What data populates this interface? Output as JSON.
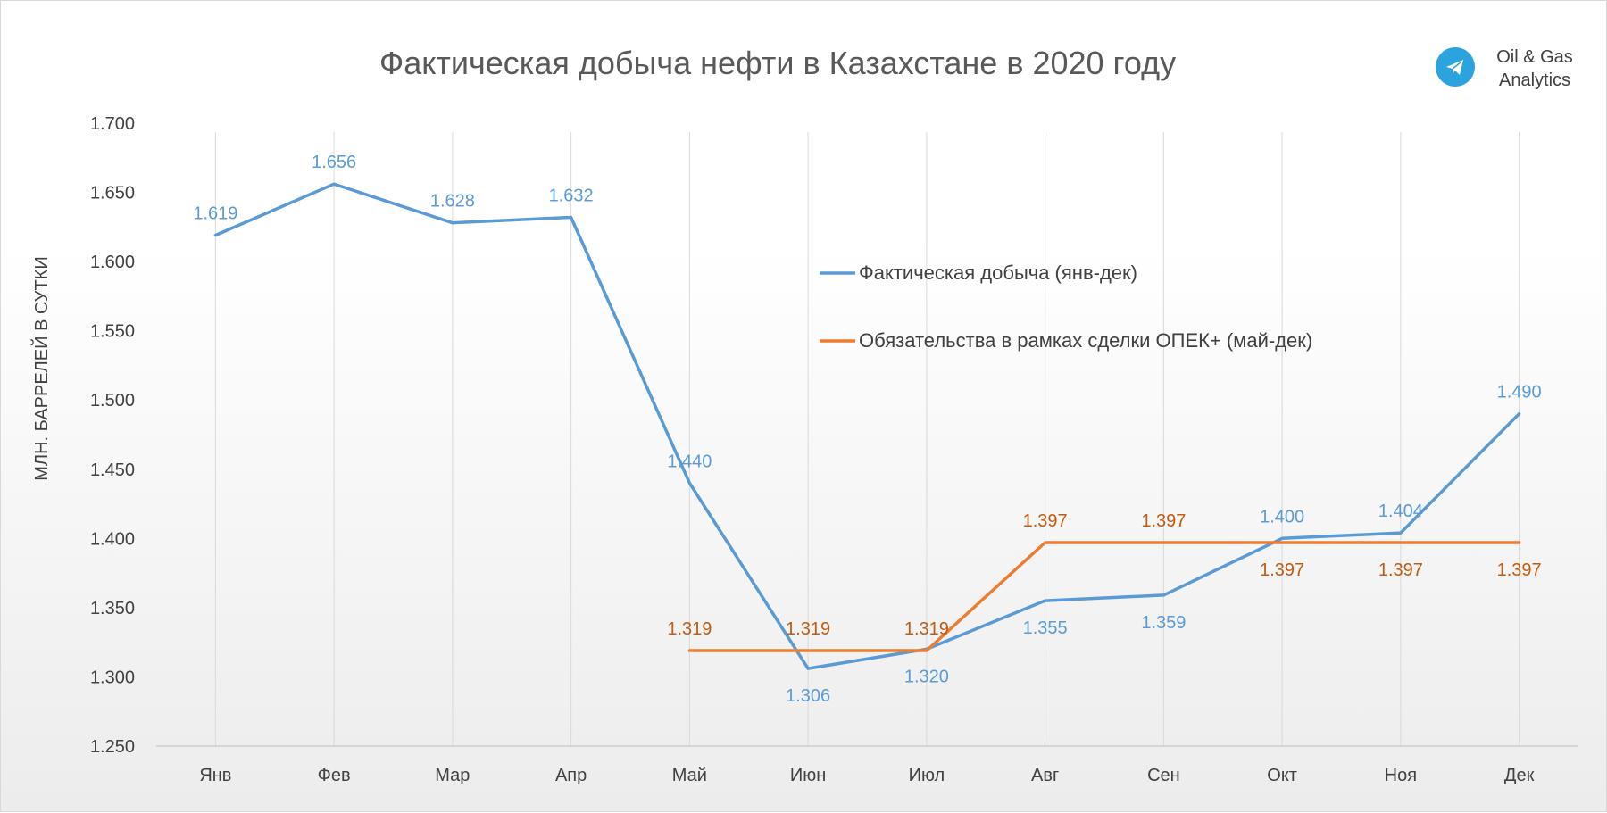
{
  "chart_data": {
    "type": "line",
    "title": "Фактическая добыча нефти в Казахстане в 2020 году",
    "ylabel": "МЛН. БАРРЕЛЕЙ В СУТКИ",
    "xlabel": "",
    "categories": [
      "Янв",
      "Фев",
      "Мар",
      "Апр",
      "Май",
      "Июн",
      "Июл",
      "Авг",
      "Сен",
      "Окт",
      "Ноя",
      "Дек"
    ],
    "ylim": [
      1.25,
      1.7
    ],
    "yticks": [
      "1.250",
      "1.300",
      "1.350",
      "1.400",
      "1.450",
      "1.500",
      "1.550",
      "1.600",
      "1.650",
      "1.700"
    ],
    "ytick_values": [
      1.25,
      1.3,
      1.35,
      1.4,
      1.45,
      1.5,
      1.55,
      1.6,
      1.65,
      1.7
    ],
    "vertical_gridlines": true,
    "legend_position": "center-right",
    "series": [
      {
        "name": "Фактическая добыча (янв-дек)",
        "color": "#5b9bd5",
        "values": [
          1.619,
          1.656,
          1.628,
          1.632,
          1.44,
          1.306,
          1.32,
          1.355,
          1.359,
          1.4,
          1.404,
          1.49
        ],
        "labels": [
          "1.619",
          "1.656",
          "1.628",
          "1.632",
          "1.440",
          "1.306",
          "1.320",
          "1.355",
          "1.359",
          "1.400",
          "1.404",
          "1.490"
        ],
        "label_positions": [
          "above",
          "above",
          "above",
          "above",
          "above",
          "below",
          "below",
          "below",
          "below",
          "above",
          "above",
          "above"
        ]
      },
      {
        "name": "Обязательства в рамках сделки ОПЕК+ (май-дек)",
        "color": "#ed7d31",
        "label_color": "#c55a11",
        "values": [
          null,
          null,
          null,
          null,
          1.319,
          1.319,
          1.319,
          1.397,
          1.397,
          1.397,
          1.397,
          1.397
        ],
        "labels": [
          null,
          null,
          null,
          null,
          "1.319",
          "1.319",
          "1.319",
          "1.397",
          "1.397",
          "1.397",
          "1.397",
          "1.397"
        ],
        "label_positions": [
          null,
          null,
          null,
          null,
          "above",
          "above",
          "above",
          "above",
          "above",
          "below",
          "below",
          "below"
        ]
      }
    ]
  },
  "logo": {
    "line1": "Oil & Gas",
    "line2": "Analytics",
    "icon": "telegram-icon",
    "icon_color": "#2aa3de"
  }
}
